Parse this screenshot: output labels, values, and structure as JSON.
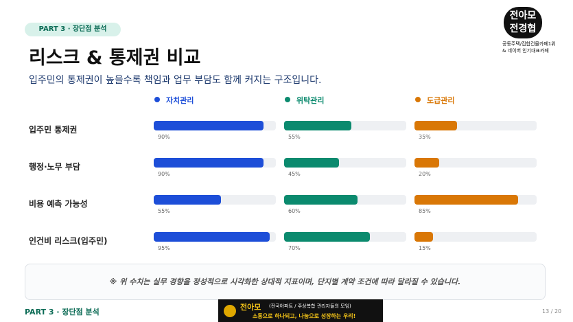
{
  "header": {
    "badge": "PART 3 · 장단점 분석",
    "subtitle": "입주민의 통제권이 높을수록 책임과 업무 부담도 함께 커지는 구조입니다."
  },
  "logo": {
    "line1": "전아모",
    "line2": "전경협",
    "caption1": "공동주택/집합건물카페1위",
    "caption2": "& 네이버 인기대표카페"
  },
  "chart_data": {
    "type": "bar",
    "title": "리스크 & 통제권 비교",
    "categories": [
      "입주민 통제권",
      "행정·노무 부담",
      "비용 예측 가능성",
      "인건비 리스크(입주민)"
    ],
    "xlim": [
      0,
      100
    ],
    "series": [
      {
        "name": "자치관리",
        "color": "#1d4ed8",
        "values": [
          90,
          90,
          55,
          95
        ],
        "value_labels": [
          "90%",
          "90%",
          "55%",
          "95%"
        ]
      },
      {
        "name": "위탁관리",
        "color": "#0b8a6e",
        "values": [
          55,
          45,
          60,
          70
        ],
        "value_labels": [
          "55%",
          "45%",
          "60%",
          "70%"
        ]
      },
      {
        "name": "도급관리",
        "color": "#d97706",
        "values": [
          35,
          20,
          85,
          15
        ],
        "value_labels": [
          "35%",
          "20%",
          "85%",
          "15%"
        ]
      }
    ]
  },
  "note": "※ 위 수치는 실무 경향을 정성적으로 시각화한 상대적 지표이며, 단지별 계약 조건에 따라 달라질 수 있습니다.",
  "footer": {
    "section": "PART 3 · 장단점 분석",
    "brand": "전아모",
    "brand_sub": "(전국아파트 / 주상복합 관리자들의 모임)",
    "slogan": "소통으로 하나되고, 나눔으로 성장하는 우리!",
    "page": "13 / 20"
  }
}
